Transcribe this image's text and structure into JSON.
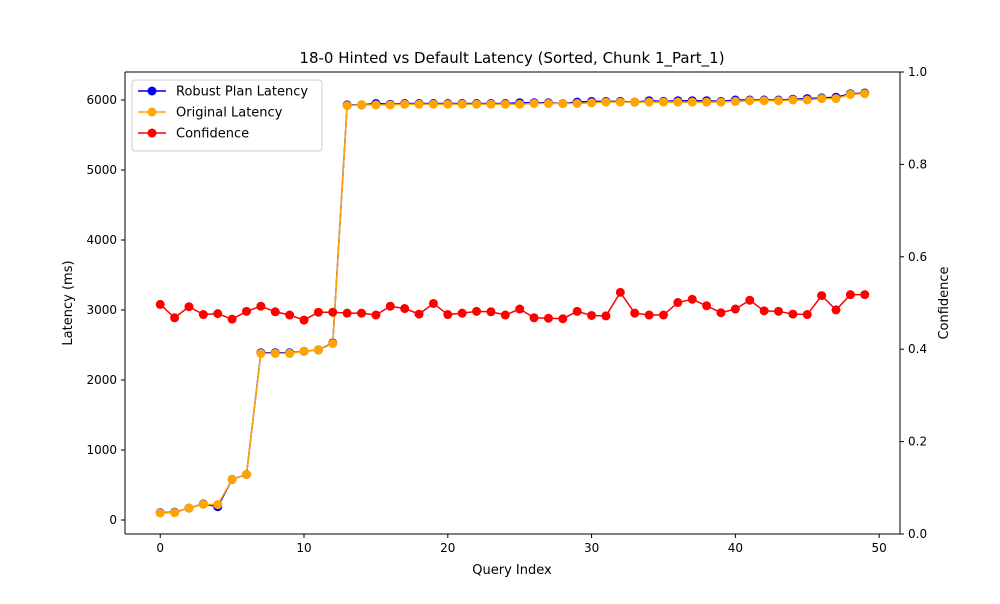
{
  "chart_data": {
    "type": "line",
    "title": "18-0 Hinted vs Default Latency (Sorted, Chunk 1_Part_1)",
    "xlabel": "Query Index",
    "ylabel": "Latency (ms)",
    "y2label": "Confidence",
    "xlim": [
      -2.45,
      51.45
    ],
    "ylim": [
      -200,
      6400
    ],
    "y2lim": [
      0,
      1.0
    ],
    "xticks": [
      0,
      10,
      20,
      30,
      40,
      50
    ],
    "yticks": [
      0,
      1000,
      2000,
      3000,
      4000,
      5000,
      6000
    ],
    "y2ticks": [
      0.0,
      0.2,
      0.4,
      0.6,
      0.8,
      1.0
    ],
    "legend_position": "upper-left",
    "x": [
      0,
      1,
      2,
      3,
      4,
      5,
      6,
      7,
      8,
      9,
      10,
      11,
      12,
      13,
      14,
      15,
      16,
      17,
      18,
      19,
      20,
      21,
      22,
      23,
      24,
      25,
      26,
      27,
      28,
      29,
      30,
      31,
      32,
      33,
      34,
      35,
      36,
      37,
      38,
      39,
      40,
      41,
      42,
      43,
      44,
      45,
      46,
      47,
      48,
      49
    ],
    "series": [
      {
        "name": "Robust Plan Latency",
        "axis": "left",
        "color": "#0000ff",
        "values": [
          105,
          110,
          170,
          230,
          190,
          580,
          650,
          2390,
          2390,
          2390,
          2410,
          2430,
          2530,
          5930,
          5930,
          5950,
          5940,
          5950,
          5950,
          5950,
          5950,
          5950,
          5950,
          5950,
          5950,
          5960,
          5960,
          5960,
          5950,
          5970,
          5980,
          5980,
          5980,
          5970,
          5990,
          5980,
          5990,
          5990,
          5990,
          5980,
          6000,
          6000,
          6000,
          6000,
          6010,
          6020,
          6030,
          6040,
          6090,
          6100
        ]
      },
      {
        "name": "Original Latency",
        "axis": "left",
        "color": "#ffa500",
        "values": [
          100,
          105,
          170,
          225,
          220,
          580,
          650,
          2380,
          2380,
          2380,
          2410,
          2430,
          2520,
          5920,
          5930,
          5930,
          5930,
          5940,
          5940,
          5940,
          5940,
          5940,
          5940,
          5940,
          5940,
          5940,
          5950,
          5950,
          5950,
          5950,
          5960,
          5970,
          5970,
          5970,
          5970,
          5970,
          5970,
          5970,
          5970,
          5970,
          5980,
          5990,
          5990,
          5990,
          6000,
          6000,
          6020,
          6020,
          6080,
          6090
        ]
      },
      {
        "name": "Confidence",
        "axis": "right",
        "color": "#ff0000",
        "values": [
          0.497,
          0.468,
          0.492,
          0.475,
          0.477,
          0.465,
          0.482,
          0.493,
          0.481,
          0.474,
          0.463,
          0.48,
          0.48,
          0.478,
          0.478,
          0.474,
          0.493,
          0.488,
          0.476,
          0.499,
          0.475,
          0.478,
          0.482,
          0.481,
          0.474,
          0.487,
          0.468,
          0.467,
          0.466,
          0.482,
          0.473,
          0.472,
          0.523,
          0.478,
          0.474,
          0.474,
          0.501,
          0.508,
          0.494,
          0.479,
          0.487,
          0.506,
          0.483,
          0.482,
          0.476,
          0.475,
          0.516,
          0.485,
          0.518,
          0.518
        ]
      }
    ]
  }
}
